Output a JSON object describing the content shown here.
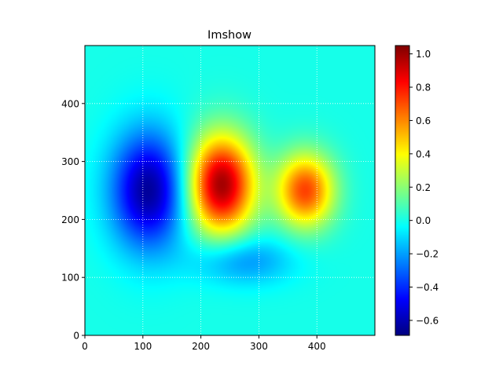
{
  "chart_data": {
    "type": "heatmap",
    "title": "Imshow",
    "xlabel": "",
    "ylabel": "",
    "xlim": [
      0,
      500
    ],
    "ylim": [
      0,
      500
    ],
    "origin": "lower",
    "colormap": "jet",
    "grid": true,
    "x_ticks": [
      0,
      100,
      200,
      300,
      400
    ],
    "y_ticks": [
      0,
      100,
      200,
      300,
      400
    ],
    "x_tick_labels": [
      "0",
      "100",
      "200",
      "300",
      "400"
    ],
    "y_tick_labels": [
      "0",
      "100",
      "200",
      "300",
      "400"
    ],
    "colorbar": {
      "vmin": -0.69,
      "vmax": 1.05,
      "ticks": [
        -0.6,
        -0.4,
        -0.2,
        0.0,
        0.2,
        0.4,
        0.6,
        0.8,
        1.0
      ],
      "tick_labels": [
        "−0.6",
        "−0.4",
        "−0.2",
        "0.0",
        "0.2",
        "0.4",
        "0.6",
        "0.8",
        "1.0"
      ]
    },
    "field_components": [
      {
        "cx": 110,
        "cy": 250,
        "sx": 45,
        "sy": 70,
        "amplitude": -0.65
      },
      {
        "cx": 270,
        "cy": 130,
        "sx": 60,
        "sy": 30,
        "amplitude": -0.24
      },
      {
        "cx": 235,
        "cy": 260,
        "sx": 40,
        "sy": 60,
        "amplitude": 1.0
      },
      {
        "cx": 380,
        "cy": 250,
        "sx": 35,
        "sy": 45,
        "amplitude": 0.72
      }
    ]
  }
}
